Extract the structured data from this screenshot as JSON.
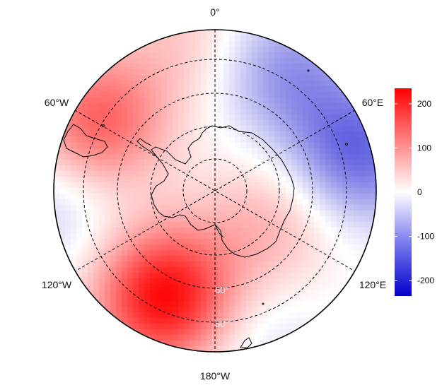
{
  "map": {
    "projection": "south-polar stereographic",
    "longitude_labels": {
      "top": "0°",
      "upper_left": "60°W",
      "upper_right": "60°E",
      "lower_left": "120°W",
      "lower_right": "120°E",
      "bottom": "180°W"
    },
    "latitude_labels": [
      "60°",
      "50°"
    ]
  },
  "colorbar": {
    "ticks": [
      "200",
      "100",
      "0",
      "-100",
      "-200"
    ],
    "tick_values": [
      200,
      100,
      0,
      -100,
      -200
    ],
    "range": [
      -235,
      235
    ],
    "colors": {
      "min": "#0000cc",
      "mid": "#ffffff",
      "max": "#ff0000"
    }
  },
  "field": {
    "description_values_in_legend_units": true,
    "anomalies": [
      {
        "lon": -155,
        "lat": -58,
        "value": 230
      },
      {
        "lon": -60,
        "lat": -53,
        "value": 150
      },
      {
        "lon": 75,
        "lat": -50,
        "value": -140
      },
      {
        "lon": 30,
        "lat": -52,
        "value": -95
      },
      {
        "lon": -95,
        "lat": -48,
        "value": -50
      },
      {
        "lon": 120,
        "lat": -72,
        "value": 70
      },
      {
        "lon": -10,
        "lat": -48,
        "value": 50
      },
      {
        "lon": 165,
        "lat": -48,
        "value": -35
      }
    ]
  }
}
